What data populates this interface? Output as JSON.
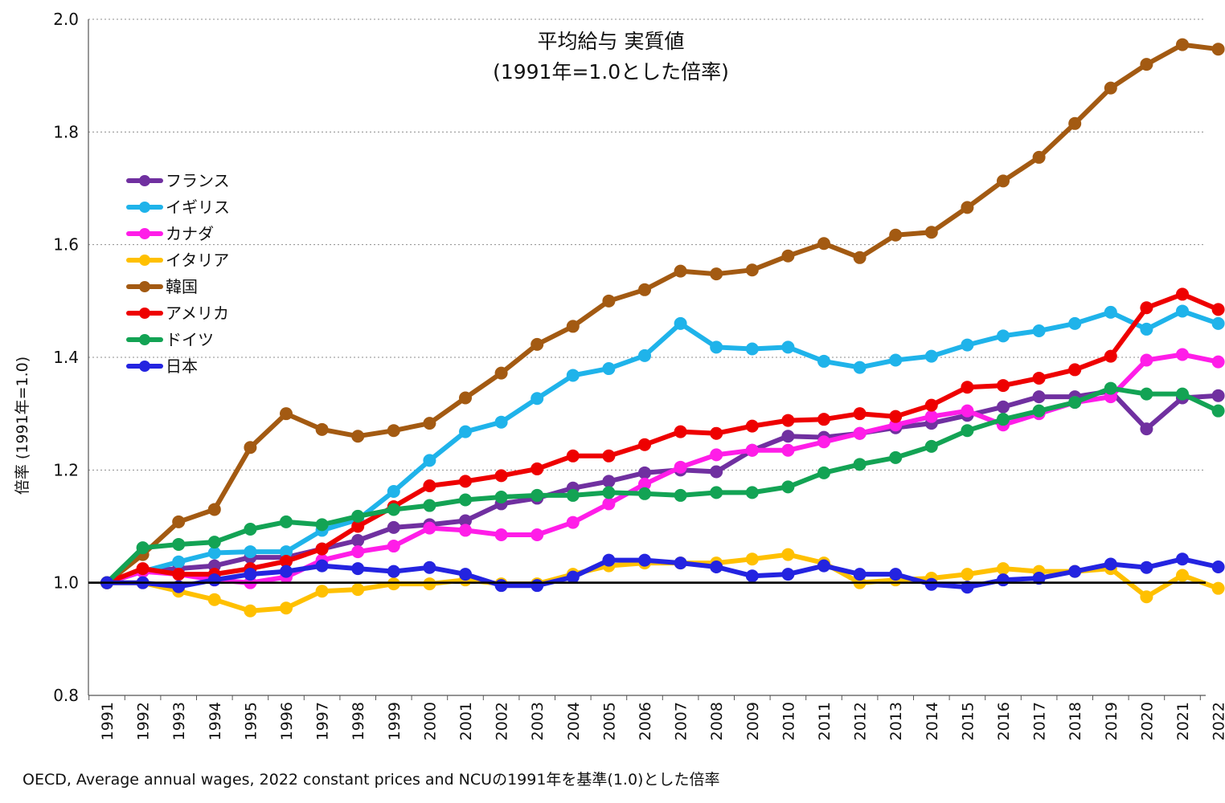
{
  "chart_data": {
    "type": "line",
    "title_lines": [
      "平均給与 実質値",
      "(1991年=1.0とした倍率)"
    ],
    "xlabel": "",
    "ylabel": "倍率 (1991年=1.0)",
    "ylim": [
      0.8,
      2.0
    ],
    "yticks": [
      "0.8",
      "1.0",
      "1.2",
      "1.4",
      "1.6",
      "1.8",
      "2.0"
    ],
    "grid": "horizontal dotted",
    "baseline": 1.0,
    "legend_position": "left, upper-middle",
    "categories": [
      "1991",
      "1992",
      "1993",
      "1994",
      "1995",
      "1996",
      "1997",
      "1998",
      "1999",
      "2000",
      "2001",
      "2002",
      "2003",
      "2004",
      "2005",
      "2006",
      "2007",
      "2008",
      "2009",
      "2010",
      "2011",
      "2012",
      "2013",
      "2014",
      "2015",
      "2016",
      "2017",
      "2018",
      "2019",
      "2020",
      "2021",
      "2022"
    ],
    "series": [
      {
        "name": "フランス",
        "color": "#7030a0",
        "values": [
          1.0,
          1.02,
          1.025,
          1.03,
          1.045,
          1.045,
          1.06,
          1.075,
          1.098,
          1.103,
          1.11,
          1.14,
          1.15,
          1.168,
          1.18,
          1.195,
          1.2,
          1.197,
          1.235,
          1.26,
          1.258,
          1.265,
          1.275,
          1.283,
          1.297,
          1.312,
          1.33,
          1.33,
          1.34,
          1.273,
          1.328,
          1.332
        ]
      },
      {
        "name": "イギリス",
        "color": "#1fb3ea",
        "values": [
          1.0,
          1.02,
          1.037,
          1.053,
          1.055,
          1.055,
          1.093,
          1.112,
          1.162,
          1.217,
          1.268,
          1.285,
          1.327,
          1.368,
          1.38,
          1.403,
          1.46,
          1.418,
          1.415,
          1.418,
          1.393,
          1.382,
          1.395,
          1.402,
          1.422,
          1.438,
          1.447,
          1.46,
          1.48,
          1.45,
          1.482,
          1.46
        ]
      },
      {
        "name": "カナダ",
        "color": "#ff1de8",
        "values": [
          1.0,
          1.02,
          1.015,
          1.005,
          1.0,
          1.01,
          1.04,
          1.055,
          1.065,
          1.097,
          1.093,
          1.085,
          1.085,
          1.107,
          1.14,
          1.175,
          1.205,
          1.227,
          1.235,
          1.235,
          1.25,
          1.265,
          1.28,
          1.295,
          1.305,
          1.28,
          1.3,
          1.32,
          1.33,
          1.395,
          1.405,
          1.392
        ]
      },
      {
        "name": "イタリア",
        "color": "#ffc000",
        "values": [
          1.0,
          1.0,
          0.985,
          0.97,
          0.95,
          0.955,
          0.985,
          0.988,
          0.998,
          0.998,
          1.005,
          0.998,
          0.998,
          1.015,
          1.03,
          1.035,
          1.035,
          1.035,
          1.042,
          1.05,
          1.035,
          1.0,
          1.005,
          1.008,
          1.015,
          1.025,
          1.02,
          1.02,
          1.025,
          0.975,
          1.013,
          0.99
        ]
      },
      {
        "name": "韓国",
        "color": "#a35a12",
        "values": [
          1.0,
          1.05,
          1.108,
          1.13,
          1.24,
          1.3,
          1.272,
          1.26,
          1.27,
          1.283,
          1.328,
          1.372,
          1.423,
          1.455,
          1.5,
          1.52,
          1.553,
          1.548,
          1.555,
          1.58,
          1.602,
          1.577,
          1.617,
          1.622,
          1.666,
          1.713,
          1.755,
          1.815,
          1.878,
          1.92,
          1.955,
          1.947
        ]
      },
      {
        "name": "アメリカ",
        "color": "#ee0000",
        "values": [
          1.0,
          1.025,
          1.015,
          1.015,
          1.025,
          1.038,
          1.06,
          1.1,
          1.135,
          1.172,
          1.18,
          1.19,
          1.202,
          1.225,
          1.225,
          1.245,
          1.268,
          1.265,
          1.278,
          1.288,
          1.29,
          1.3,
          1.295,
          1.315,
          1.347,
          1.35,
          1.363,
          1.378,
          1.402,
          1.488,
          1.512,
          1.485
        ]
      },
      {
        "name": "ドイツ",
        "color": "#13a354",
        "values": [
          1.0,
          1.062,
          1.068,
          1.072,
          1.095,
          1.108,
          1.103,
          1.118,
          1.13,
          1.137,
          1.147,
          1.152,
          1.155,
          1.155,
          1.16,
          1.158,
          1.155,
          1.16,
          1.16,
          1.17,
          1.195,
          1.21,
          1.222,
          1.242,
          1.27,
          1.29,
          1.305,
          1.32,
          1.345,
          1.335,
          1.335,
          1.305
        ]
      },
      {
        "name": "日本",
        "color": "#2424e0",
        "values": [
          1.0,
          1.0,
          0.993,
          1.005,
          1.015,
          1.02,
          1.03,
          1.025,
          1.02,
          1.027,
          1.015,
          0.995,
          0.995,
          1.01,
          1.04,
          1.04,
          1.035,
          1.028,
          1.012,
          1.015,
          1.03,
          1.015,
          1.015,
          0.997,
          0.992,
          1.005,
          1.008,
          1.02,
          1.033,
          1.027,
          1.042,
          1.028
        ]
      }
    ]
  },
  "footnote": "OECD, Average annual wages, 2022 constant prices and NCUの1991年を基準(1.0)とした倍率"
}
